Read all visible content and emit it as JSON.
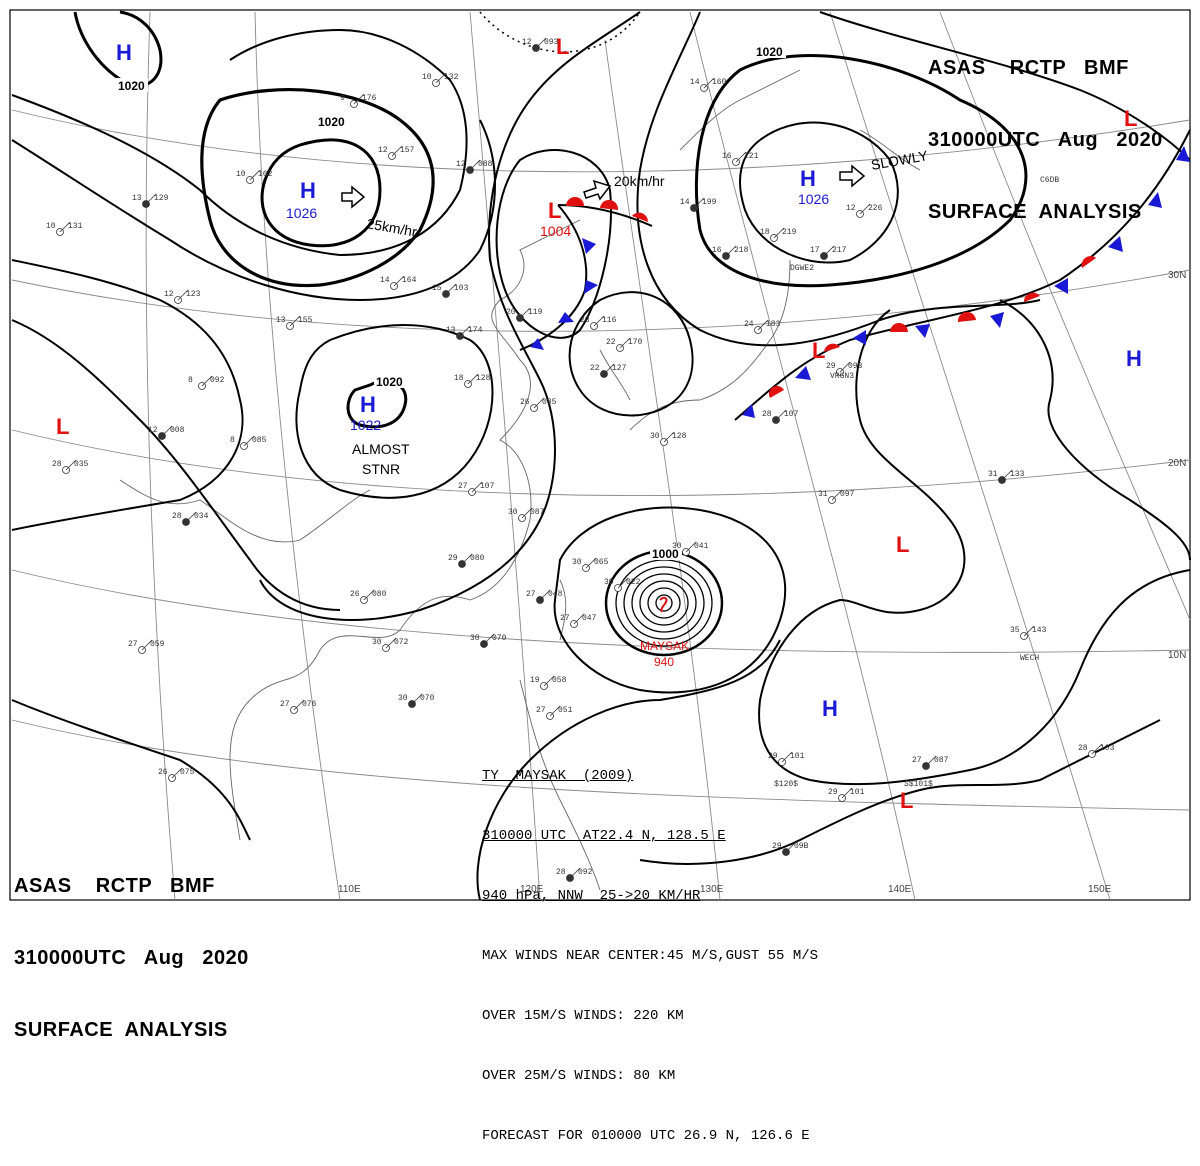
{
  "header": {
    "line1": "ASAS    RCTP   BMF",
    "line2": "310000UTC   Aug   2020",
    "line3": "SURFACE  ANALYSIS"
  },
  "typhoon": {
    "name_label": "MAYSAK",
    "pressure_label": "940",
    "bulletin": [
      "TY  MAYSAK  (2009)",
      "310000 UTC  AT22.4 N, 128.5 E",
      "940 hPa, NNW  25->20 KM/HR",
      "MAX WINDS NEAR CENTER:45 M/S,GUST 55 M/S",
      "OVER 15M/S WINDS: 220 KM",
      "OVER 25M/S WINDS: 80 KM",
      "FORECAST FOR 010000 UTC 26.9 N, 126.6 E"
    ]
  },
  "pressure_centers": [
    {
      "type": "H",
      "value": "",
      "color": "#1a1ad6"
    },
    {
      "type": "H",
      "value": "1026",
      "color": "#1a1ad6"
    },
    {
      "type": "H",
      "value": "1026",
      "color": "#1a1ad6"
    },
    {
      "type": "H",
      "value": "1022",
      "color": "#1a1ad6"
    },
    {
      "type": "H",
      "value": "",
      "color": "#1a1ad6"
    },
    {
      "type": "H",
      "value": "",
      "color": "#1a1ad6"
    },
    {
      "type": "L",
      "value": "1004",
      "color": "#e01010"
    },
    {
      "type": "L",
      "value": "",
      "color": "#e01010"
    },
    {
      "type": "L",
      "value": "",
      "color": "#e01010"
    },
    {
      "type": "L",
      "value": "",
      "color": "#e01010"
    },
    {
      "type": "L",
      "value": "",
      "color": "#e01010"
    },
    {
      "type": "L",
      "value": "",
      "color": "#e01010"
    },
    {
      "type": "L",
      "value": "",
      "color": "#e01010"
    }
  ],
  "motion_labels": {
    "high_nw": "25km/hr",
    "low_north": "20km/hr",
    "high_ne": "SLOWLY",
    "high_china_1": "ALMOST",
    "high_china_2": "STNR"
  },
  "isobar_labels": [
    "1020",
    "1020",
    "1020",
    "1020",
    "1000"
  ],
  "longitude_labels": [
    "110E",
    "120E",
    "130E",
    "140E",
    "150E"
  ],
  "latitude_labels": [
    "30N",
    "20N",
    "10N"
  ],
  "stations": [
    {
      "t": "12",
      "p": "093"
    },
    {
      "t": "10",
      "p": "132"
    },
    {
      "t": "9",
      "p": "176"
    },
    {
      "t": "12",
      "p": "088"
    },
    {
      "t": "12",
      "p": "157"
    },
    {
      "t": "10",
      "p": "162"
    },
    {
      "t": "13",
      "p": "129"
    },
    {
      "t": "10",
      "p": "131"
    },
    {
      "t": "14",
      "p": "164"
    },
    {
      "t": "15",
      "p": "103"
    },
    {
      "t": "12",
      "p": "123"
    },
    {
      "t": "13",
      "p": "155"
    },
    {
      "t": "13",
      "p": "174"
    },
    {
      "t": "18",
      "p": "128"
    },
    {
      "t": "8",
      "p": "092"
    },
    {
      "t": "12",
      "p": "008"
    },
    {
      "t": "8",
      "p": "085"
    },
    {
      "t": "28",
      "p": "035"
    },
    {
      "t": "28",
      "p": "034"
    },
    {
      "t": "27",
      "p": "107"
    },
    {
      "t": "30",
      "p": "087"
    },
    {
      "t": "29",
      "p": "080"
    },
    {
      "t": "26",
      "p": "080"
    },
    {
      "t": "30",
      "p": "072"
    },
    {
      "t": "30",
      "p": "070"
    },
    {
      "t": "27",
      "p": "059"
    },
    {
      "t": "27",
      "p": "076"
    },
    {
      "t": "30",
      "p": "070"
    },
    {
      "t": "26",
      "p": "075"
    },
    {
      "t": "26",
      "p": "085"
    },
    {
      "t": "20",
      "p": "119"
    },
    {
      "t": "23",
      "p": "116"
    },
    {
      "t": "22",
      "p": "170"
    },
    {
      "t": "22",
      "p": "127"
    },
    {
      "t": "30",
      "p": "065"
    },
    {
      "t": "30",
      "p": "022"
    },
    {
      "t": "27",
      "p": "048"
    },
    {
      "t": "27",
      "p": "047"
    },
    {
      "t": "30",
      "p": "041"
    },
    {
      "t": "14",
      "p": "199"
    },
    {
      "t": "14",
      "p": "160"
    },
    {
      "t": "16",
      "p": "221"
    },
    {
      "t": "16",
      "p": "218"
    },
    {
      "t": "18",
      "p": "219"
    },
    {
      "t": "12",
      "p": "226"
    },
    {
      "t": "17",
      "p": "217"
    },
    {
      "t": "24",
      "p": "183"
    },
    {
      "t": "29",
      "p": "093"
    },
    {
      "t": "28",
      "p": "107"
    },
    {
      "t": "30",
      "p": "128"
    },
    {
      "t": "31",
      "p": "097"
    },
    {
      "t": "31",
      "p": "133"
    },
    {
      "t": "35",
      "p": "143"
    },
    {
      "t": "29",
      "p": "101"
    },
    {
      "t": "27",
      "p": "087"
    },
    {
      "t": "28",
      "p": "103"
    },
    {
      "t": "29",
      "p": "101"
    },
    {
      "t": "29",
      "p": "09B"
    },
    {
      "t": "19",
      "p": "058"
    },
    {
      "t": "27",
      "p": "051"
    },
    {
      "t": "28",
      "p": "092"
    }
  ],
  "station_ids": [
    "DGWE2",
    "VRGN3",
    "WECH",
    "C6DB",
    "S$101$",
    "$120$"
  ],
  "colors": {
    "isobar": "#000000",
    "grid": "#8a8a8a",
    "coast": "#666666",
    "high": "#1a1ad6",
    "low": "#e01010",
    "cold_front": "#1a1ad6",
    "warm_front": "#e01010"
  }
}
